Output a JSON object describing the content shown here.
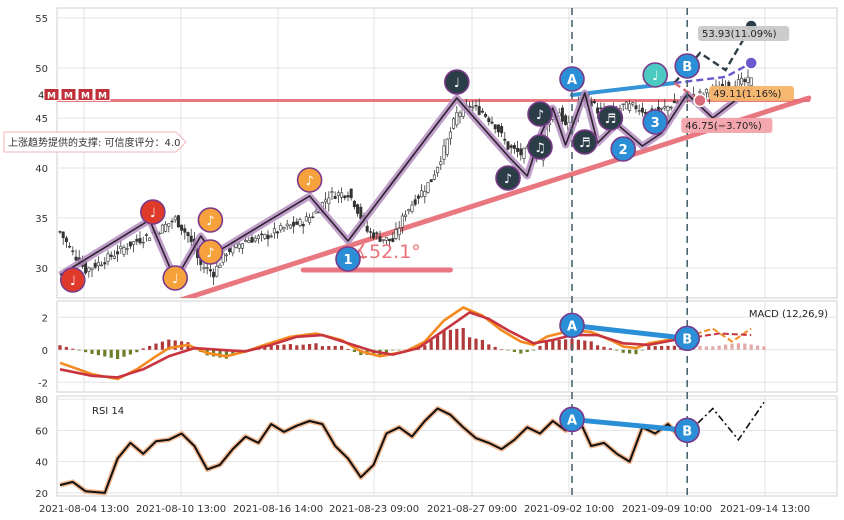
{
  "chart_data": [
    {
      "type": "candlestick",
      "panel": "price",
      "ylim": [
        27,
        56
      ],
      "y_ticks": [
        30,
        35,
        40,
        45,
        50,
        55
      ],
      "x_tick_labels": [
        "2021-08-04 13:00",
        "2021-08-10 13:00",
        "2021-08-16 14:00",
        "2021-08-23 09:00",
        "2021-08-27 09:00",
        "2021-09-02 10:00",
        "2021-09-09 10:00",
        "2021-09-14 13:00"
      ],
      "grid": true,
      "close_path": [
        [
          0,
          33.6
        ],
        [
          4,
          31.5
        ],
        [
          8,
          29.8
        ],
        [
          14,
          30.8
        ],
        [
          22,
          32.4
        ],
        [
          30,
          33.6
        ],
        [
          36,
          34.9
        ],
        [
          40,
          33.2
        ],
        [
          44,
          30.3
        ],
        [
          48,
          29.5
        ],
        [
          52,
          31.6
        ],
        [
          58,
          32.8
        ],
        [
          64,
          33.1
        ],
        [
          70,
          34.0
        ],
        [
          76,
          34.6
        ],
        [
          80,
          35.6
        ],
        [
          84,
          37.3
        ],
        [
          90,
          37.5
        ],
        [
          92,
          36.5
        ],
        [
          96,
          33.7
        ],
        [
          100,
          33.0
        ],
        [
          104,
          32.7
        ],
        [
          108,
          35.6
        ],
        [
          112,
          37.2
        ],
        [
          116,
          38.8
        ],
        [
          120,
          41.8
        ],
        [
          124,
          45.4
        ],
        [
          128,
          46.2
        ],
        [
          132,
          45.6
        ],
        [
          136,
          44.3
        ],
        [
          140,
          42.1
        ],
        [
          144,
          41.4
        ],
        [
          148,
          42.0
        ],
        [
          150,
          41.1
        ],
        [
          152,
          44.5
        ],
        [
          154,
          45.2
        ],
        [
          156,
          45.6
        ],
        [
          158,
          44.2
        ],
        [
          160,
          44.1
        ],
        [
          162,
          46.5
        ],
        [
          164,
          47.0
        ],
        [
          166,
          46.6
        ],
        [
          168,
          45.8
        ],
        [
          172,
          45.3
        ],
        [
          176,
          46.2
        ],
        [
          180,
          46.1
        ],
        [
          184,
          45.5
        ],
        [
          188,
          45.8
        ],
        [
          192,
          46.5
        ],
        [
          196,
          47.0
        ],
        [
          200,
          47.3
        ],
        [
          206,
          48.0
        ],
        [
          212,
          48.5
        ],
        [
          216,
          48.7
        ]
      ],
      "ma_line": [
        [
          0,
          29.3
        ],
        [
          28,
          34.8
        ],
        [
          36,
          28.8
        ],
        [
          44,
          33.2
        ],
        [
          48,
          31.4
        ],
        [
          78,
          37.2
        ],
        [
          90,
          32.7
        ],
        [
          124,
          47.0
        ],
        [
          140,
          41.2
        ],
        [
          146,
          39.2
        ],
        [
          150,
          43.2
        ],
        [
          154,
          46.0
        ],
        [
          158,
          42.3
        ],
        [
          164,
          47.5
        ],
        [
          168,
          42.5
        ],
        [
          174,
          44.4
        ],
        [
          182,
          42.2
        ],
        [
          188,
          43.5
        ],
        [
          196,
          47.4
        ],
        [
          204,
          45.0
        ],
        [
          216,
          48.0
        ]
      ],
      "trendlines": [
        {
          "name": "uptrend-support",
          "points": [
            [
              30,
              26.0
            ],
            [
              234,
              47.0
            ]
          ],
          "color": "#e8707a"
        },
        {
          "name": "support-horizontal",
          "points": [
            [
              -30,
              46.75
            ],
            [
              234,
              46.75
            ]
          ],
          "color": "#e8707a"
        },
        {
          "name": "angle-baseline",
          "points": [
            [
              76,
              29.8
            ],
            [
              122,
              29.8
            ]
          ],
          "color": "#e8707a"
        },
        {
          "name": "divergence-A-B",
          "points": [
            [
              160,
              47.3
            ],
            [
              192,
              48.5
            ]
          ],
          "color": "#2a8fd6"
        }
      ],
      "projections": [
        {
          "label": "53.93(11.09%)",
          "color": "#bdbdbd",
          "points": [
            [
              192,
              48.5
            ],
            [
              200,
              51.5
            ],
            [
              208,
              49.8
            ],
            [
              216,
              54.2
            ]
          ]
        },
        {
          "label": "49.11(1.16%)",
          "color": "#f7b46a",
          "points": [
            [
              192,
              48.5
            ],
            [
              208,
              49.11
            ],
            [
              216,
              50.5
            ]
          ]
        },
        {
          "label": "46.75(−3.70%)",
          "color": "#f3a3ab",
          "points": [
            [
              192,
              48.5
            ],
            [
              200,
              46.75
            ]
          ]
        }
      ],
      "markers": [
        {
          "x": 4,
          "y": 28.8,
          "type": "note",
          "glyph": "♩",
          "color": "#e03a2a"
        },
        {
          "x": 29,
          "y": 35.6,
          "type": "note",
          "glyph": "♩",
          "color": "#e03a2a"
        },
        {
          "x": 36,
          "y": 29.0,
          "type": "note",
          "glyph": "♩",
          "color": "#f5a23c"
        },
        {
          "x": 47,
          "y": 34.8,
          "type": "note",
          "glyph": "♪",
          "color": "#f5a23c"
        },
        {
          "x": 47,
          "y": 31.6,
          "type": "note",
          "glyph": "♪",
          "color": "#f5a23c"
        },
        {
          "x": 78,
          "y": 38.8,
          "type": "note",
          "glyph": "♪",
          "color": "#f5a23c"
        },
        {
          "x": 90,
          "y": 30.9,
          "type": "number",
          "glyph": "1",
          "color": "#2a8fd6"
        },
        {
          "x": 124,
          "y": 48.6,
          "type": "note",
          "glyph": "♩",
          "color": "#2b3d47"
        },
        {
          "x": 140,
          "y": 39.0,
          "type": "note",
          "glyph": "♪",
          "color": "#2b3d47"
        },
        {
          "x": 150,
          "y": 42.1,
          "type": "note",
          "glyph": "♫",
          "color": "#2b3d47"
        },
        {
          "x": 150,
          "y": 45.4,
          "type": "note",
          "glyph": "♪",
          "color": "#2b3d47"
        },
        {
          "x": 160,
          "y": 48.9,
          "type": "letter",
          "glyph": "A",
          "color": "#2a8fd6"
        },
        {
          "x": 164,
          "y": 42.6,
          "type": "note",
          "glyph": "♬",
          "color": "#2b3d47"
        },
        {
          "x": 172,
          "y": 45.0,
          "type": "note",
          "glyph": "♬",
          "color": "#2b3d47"
        },
        {
          "x": 176,
          "y": 41.9,
          "type": "number",
          "glyph": "2",
          "color": "#2a8fd6"
        },
        {
          "x": 186,
          "y": 49.3,
          "type": "note",
          "glyph": "♩",
          "color": "#4cc9c0"
        },
        {
          "x": 186,
          "y": 44.6,
          "type": "number",
          "glyph": "3",
          "color": "#2a8fd6"
        },
        {
          "x": 196,
          "y": 50.2,
          "type": "letter",
          "glyph": "B",
          "color": "#2a8fd6"
        }
      ],
      "support_label": "上涨趋势提供的支撑: 可信度评分：4.0",
      "angle_label": "∡52.1°",
      "legend_badges": [
        "4",
        "M",
        "M",
        "M",
        "M"
      ]
    },
    {
      "type": "line",
      "panel": "macd",
      "label": "MACD (12,26,9)",
      "ylim": [
        -2.6,
        3.0
      ],
      "y_ticks": [
        -2,
        0,
        2
      ],
      "dif": [
        [
          0,
          -0.8
        ],
        [
          10,
          -1.5
        ],
        [
          18,
          -1.8
        ],
        [
          24,
          -1.2
        ],
        [
          30,
          -0.4
        ],
        [
          34,
          0.1
        ],
        [
          40,
          0.3
        ],
        [
          46,
          -0.2
        ],
        [
          52,
          -0.4
        ],
        [
          58,
          -0.1
        ],
        [
          64,
          0.3
        ],
        [
          72,
          0.8
        ],
        [
          80,
          1.0
        ],
        [
          88,
          0.6
        ],
        [
          94,
          -0.1
        ],
        [
          100,
          -0.4
        ],
        [
          108,
          -0.1
        ],
        [
          114,
          0.5
        ],
        [
          120,
          1.8
        ],
        [
          126,
          2.6
        ],
        [
          132,
          2.1
        ],
        [
          138,
          1.2
        ],
        [
          144,
          0.5
        ],
        [
          148,
          0.3
        ],
        [
          152,
          0.8
        ],
        [
          156,
          1.0
        ],
        [
          160,
          1.2
        ],
        [
          166,
          1.1
        ],
        [
          172,
          0.6
        ],
        [
          176,
          0.2
        ],
        [
          180,
          0.1
        ],
        [
          184,
          0.4
        ],
        [
          190,
          0.6
        ],
        [
          196,
          0.8
        ]
      ],
      "dea": [
        [
          0,
          -1.2
        ],
        [
          10,
          -1.6
        ],
        [
          18,
          -1.7
        ],
        [
          26,
          -1.2
        ],
        [
          34,
          -0.4
        ],
        [
          42,
          0.1
        ],
        [
          50,
          0.0
        ],
        [
          58,
          -0.1
        ],
        [
          66,
          0.3
        ],
        [
          74,
          0.8
        ],
        [
          82,
          0.9
        ],
        [
          90,
          0.4
        ],
        [
          98,
          -0.1
        ],
        [
          104,
          -0.3
        ],
        [
          112,
          0.1
        ],
        [
          120,
          1.2
        ],
        [
          128,
          2.3
        ],
        [
          134,
          1.9
        ],
        [
          140,
          1.2
        ],
        [
          148,
          0.4
        ],
        [
          154,
          0.6
        ],
        [
          160,
          0.9
        ],
        [
          168,
          0.9
        ],
        [
          176,
          0.4
        ],
        [
          184,
          0.3
        ],
        [
          192,
          0.6
        ],
        [
          196,
          0.7
        ]
      ],
      "dif_projection": [
        [
          196,
          0.8
        ],
        [
          204,
          1.3
        ],
        [
          210,
          0.5
        ],
        [
          216,
          1.3
        ]
      ],
      "dea_projection": [
        [
          196,
          0.7
        ],
        [
          206,
          1.0
        ],
        [
          216,
          0.9
        ]
      ],
      "divergence": {
        "points": [
          [
            160,
            1.5
          ],
          [
            196,
            0.7
          ]
        ],
        "labels": [
          "A",
          "B"
        ],
        "color": "#2a8fd6"
      }
    },
    {
      "type": "line",
      "panel": "rsi",
      "label": "RSI 14",
      "ylim": [
        18,
        82
      ],
      "y_ticks": [
        20,
        40,
        60,
        80
      ],
      "rsi": [
        [
          0,
          25
        ],
        [
          4,
          27
        ],
        [
          8,
          21
        ],
        [
          14,
          20
        ],
        [
          18,
          42
        ],
        [
          22,
          52
        ],
        [
          26,
          45
        ],
        [
          30,
          53
        ],
        [
          34,
          54
        ],
        [
          38,
          58
        ],
        [
          42,
          50
        ],
        [
          46,
          35
        ],
        [
          50,
          38
        ],
        [
          54,
          48
        ],
        [
          58,
          56
        ],
        [
          62,
          52
        ],
        [
          66,
          64
        ],
        [
          70,
          59
        ],
        [
          74,
          63
        ],
        [
          78,
          66
        ],
        [
          82,
          64
        ],
        [
          86,
          50
        ],
        [
          90,
          42
        ],
        [
          94,
          30
        ],
        [
          98,
          38
        ],
        [
          102,
          58
        ],
        [
          106,
          62
        ],
        [
          110,
          56
        ],
        [
          114,
          66
        ],
        [
          118,
          74
        ],
        [
          122,
          70
        ],
        [
          126,
          62
        ],
        [
          130,
          55
        ],
        [
          134,
          52
        ],
        [
          138,
          48
        ],
        [
          142,
          54
        ],
        [
          146,
          62
        ],
        [
          150,
          58
        ],
        [
          154,
          66
        ],
        [
          158,
          60
        ],
        [
          162,
          68
        ],
        [
          166,
          50
        ],
        [
          170,
          52
        ],
        [
          174,
          45
        ],
        [
          178,
          40
        ],
        [
          182,
          62
        ],
        [
          186,
          58
        ],
        [
          190,
          64
        ],
        [
          194,
          55
        ],
        [
          196,
          58
        ]
      ],
      "rsi_projection": [
        [
          196,
          58
        ],
        [
          204,
          74
        ],
        [
          212,
          54
        ],
        [
          220,
          78
        ]
      ],
      "divergence": {
        "points": [
          [
            160,
            67
          ],
          [
            196,
            60
          ]
        ],
        "labels": [
          "A",
          "B"
        ],
        "color": "#2a8fd6"
      }
    }
  ]
}
